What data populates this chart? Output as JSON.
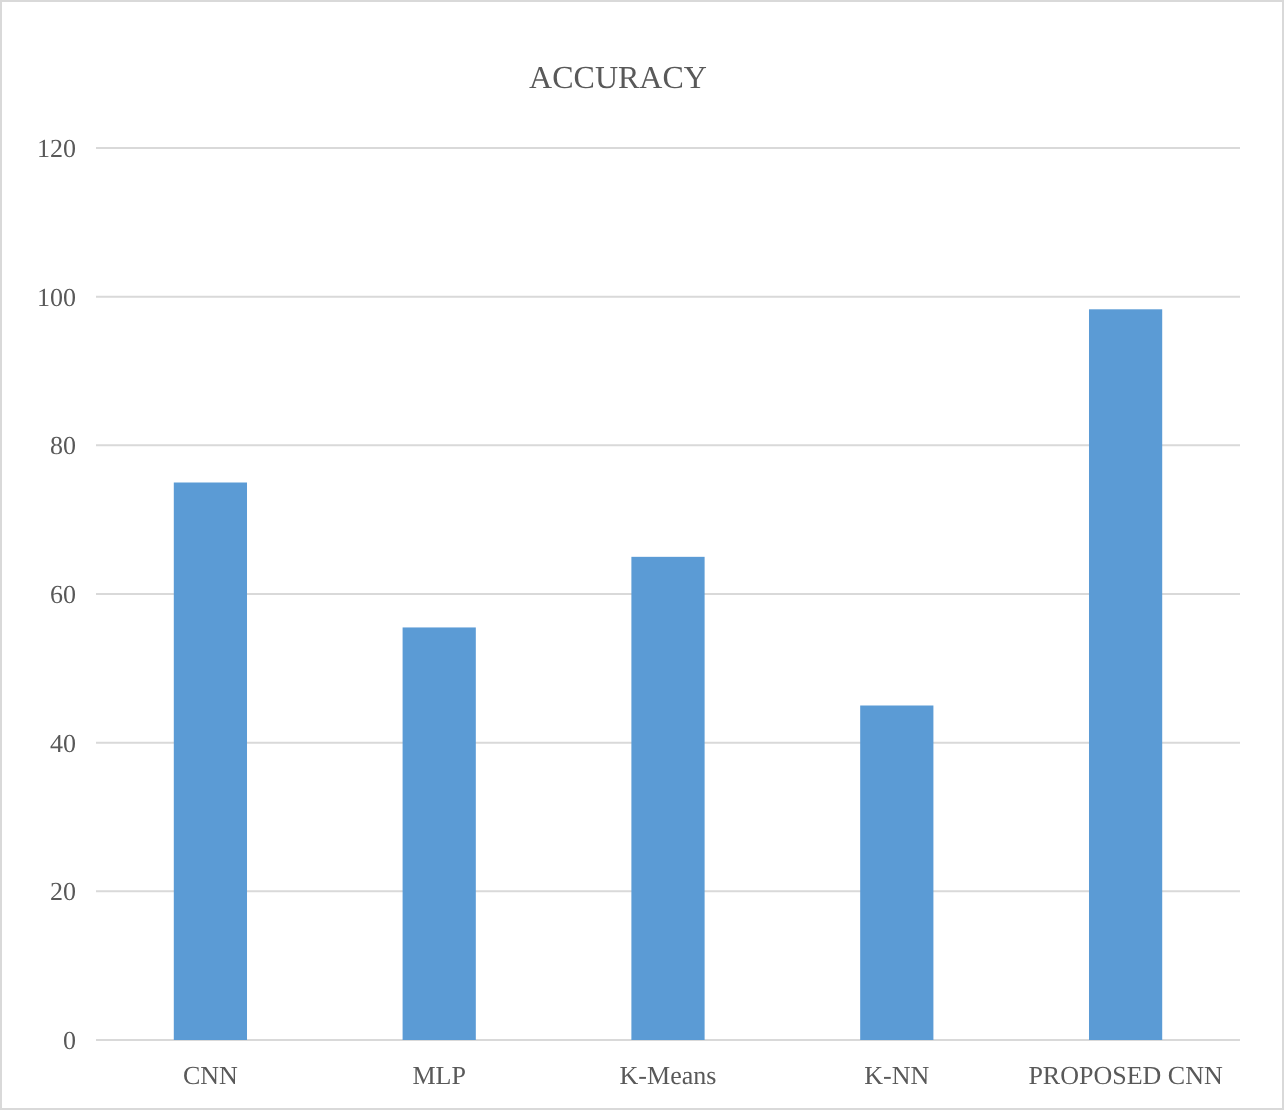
{
  "chart_data": {
    "type": "bar",
    "title": "ACCURACY",
    "categories": [
      "CNN",
      "MLP",
      "K-Means",
      "K-NN",
      "PROPOSED CNN"
    ],
    "values": [
      75,
      55.5,
      65,
      45,
      98.3
    ],
    "color": "#5b9bd5",
    "ylim": [
      0,
      120
    ],
    "yticks": [
      0,
      20,
      40,
      60,
      80,
      100,
      120
    ],
    "grid": "y"
  }
}
